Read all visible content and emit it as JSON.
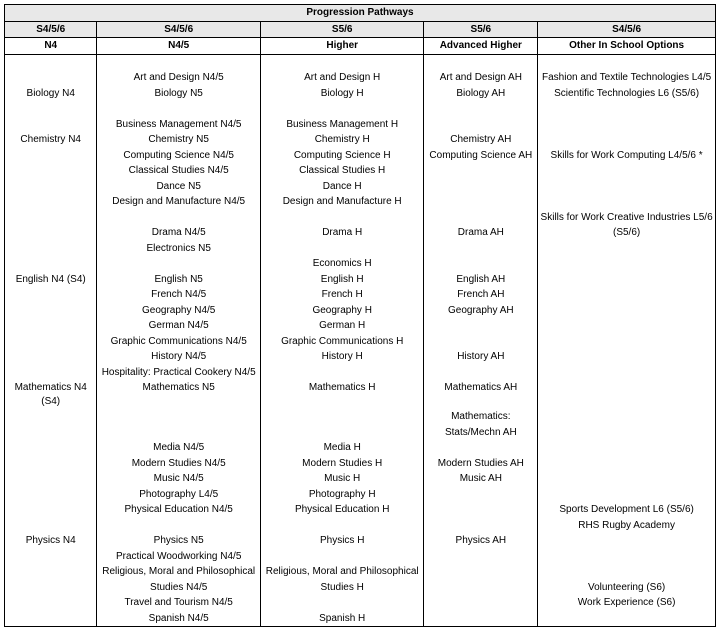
{
  "title": "Progression Pathways",
  "header1": [
    "S4/5/6",
    "S4/5/6",
    "S5/6",
    "S5/6",
    "S4/5/6"
  ],
  "header2": [
    "N4",
    "N4/5",
    "Higher",
    "Advanced Higher",
    "Other In School Options"
  ],
  "rows": [
    [
      "",
      "",
      "",
      "",
      ""
    ],
    [
      "",
      "Art and Design N4/5",
      "Art and Design H",
      "Art and Design AH",
      "Fashion and Textile Technologies L4/5"
    ],
    [
      "Biology N4",
      "Biology N5",
      "Biology H",
      "Biology AH",
      "Scientific Technologies L6 (S5/6)"
    ],
    [
      "",
      "",
      "",
      "",
      ""
    ],
    [
      "",
      "Business Management N4/5",
      "Business Management H",
      "",
      ""
    ],
    [
      "Chemistry N4",
      "Chemistry N5",
      "Chemistry H",
      "Chemistry AH",
      ""
    ],
    [
      "",
      "Computing Science N4/5",
      "Computing Science H",
      "Computing Science AH",
      "Skills for Work Computing L4/5/6 *"
    ],
    [
      "",
      "Classical Studies N4/5",
      "Classical Studies H",
      "",
      ""
    ],
    [
      "",
      "Dance N5",
      "Dance H",
      "",
      ""
    ],
    [
      "",
      "Design and Manufacture N4/5",
      "Design and Manufacture H",
      "",
      ""
    ],
    [
      "",
      "",
      "",
      "",
      "Skills for Work Creative Industries L5/6"
    ],
    [
      "",
      "Drama N4/5",
      "Drama H",
      "Drama AH",
      "(S5/6)"
    ],
    [
      "",
      "Electronics N5",
      "",
      "",
      ""
    ],
    [
      "",
      "",
      "Economics H",
      "",
      ""
    ],
    [
      "English N4 (S4)",
      "English N5",
      "English H",
      "English AH",
      ""
    ],
    [
      "",
      "French N4/5",
      "French H",
      "French AH",
      ""
    ],
    [
      "",
      "Geography N4/5",
      "Geography H",
      "Geography AH",
      ""
    ],
    [
      "",
      "German N4/5",
      "German H",
      "",
      ""
    ],
    [
      "",
      "Graphic Communications N4/5",
      "Graphic Communications H",
      "",
      ""
    ],
    [
      "",
      "History N4/5",
      "History H",
      "History AH",
      ""
    ],
    [
      "",
      "Hospitality: Practical Cookery N4/5",
      "",
      "",
      ""
    ],
    [
      "Mathematics N4 (S4)",
      "Mathematics N5",
      "Mathematics H",
      "Mathematics AH",
      ""
    ],
    [
      "",
      "",
      "",
      "Mathematics:",
      ""
    ],
    [
      "",
      "",
      "",
      "Stats/Mechn AH",
      ""
    ],
    [
      "",
      "Media N4/5",
      "Media H",
      "",
      ""
    ],
    [
      "",
      "Modern Studies N4/5",
      "Modern Studies H",
      "Modern Studies AH",
      ""
    ],
    [
      "",
      "Music N4/5",
      "Music H",
      "Music AH",
      ""
    ],
    [
      "",
      "Photography L4/5",
      "Photography H",
      "",
      ""
    ],
    [
      "",
      "Physical Education N4/5",
      "Physical Education H",
      "",
      "Sports Development L6 (S5/6)"
    ],
    [
      "",
      "",
      "",
      "",
      "RHS Rugby Academy"
    ],
    [
      "Physics N4",
      "Physics N5",
      "Physics H",
      "Physics AH",
      ""
    ],
    [
      "",
      "Practical Woodworking N4/5",
      "",
      "",
      ""
    ],
    [
      "",
      "Religious, Moral and Philosophical",
      "Religious, Moral and Philosophical",
      "",
      ""
    ],
    [
      "",
      "Studies N4/5",
      "Studies H",
      "",
      "Volunteering (S6)"
    ],
    [
      "",
      "Travel and Tourism N4/5",
      "",
      "",
      "Work Experience (S6)"
    ],
    [
      "",
      "Spanish N4/5",
      "Spanish H",
      "",
      ""
    ]
  ]
}
